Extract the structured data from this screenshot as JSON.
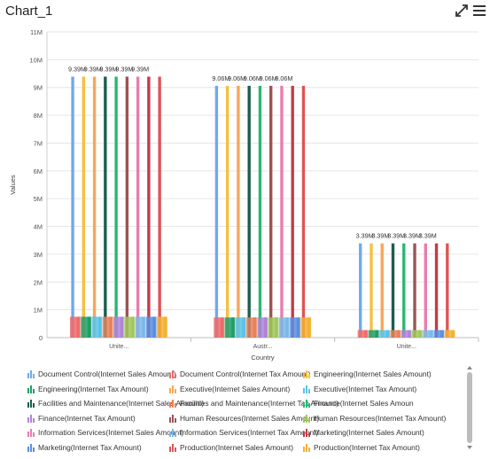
{
  "header": {
    "title": "Chart_1",
    "expand_icon": "expand-icon",
    "menu_icon": "hamburger-menu-icon"
  },
  "colors": {
    "palette": [
      "#6fa8f0",
      "#f06a6a",
      "#f5c042",
      "#1f9e6a",
      "#f7a65a",
      "#5bc2e7",
      "#1a5e4e",
      "#e8815a",
      "#2bb673",
      "#b084d8",
      "#9b5454",
      "#a0c85a",
      "#e97cb0",
      "#7ab8e8",
      "#c23b4a",
      "#5a8fe0",
      "#e05454",
      "#f2b233"
    ]
  },
  "chart_data": {
    "type": "bar",
    "title": "",
    "xlabel": "Country",
    "ylabel": "Values",
    "ylim": [
      0,
      11000000
    ],
    "y_ticks": [
      "0",
      "1M",
      "2M",
      "3M",
      "4M",
      "5M",
      "6M",
      "7M",
      "8M",
      "9M",
      "10M",
      "11M"
    ],
    "grid": true,
    "legend_position": "bottom",
    "categories": [
      "Unite...",
      "Austr...",
      "Unite..."
    ],
    "data_labels": [
      [
        "9.39M",
        "9.39M",
        "9.39M",
        "9.39M",
        "9.39M"
      ],
      [
        "9.06M",
        "9.06M",
        "9.06M",
        "9.06M",
        "9.06M"
      ],
      [
        "3.39M",
        "3.39M",
        "3.39M",
        "3.39M",
        "3.39M"
      ]
    ],
    "series": [
      {
        "name": "Document Control(Internet Sales Amount)",
        "values": [
          9390000,
          9060000,
          3390000
        ]
      },
      {
        "name": "Document Control(Internet Tax Amount)",
        "values": [
          751000,
          725000,
          271000
        ]
      },
      {
        "name": "Engineering(Internet Sales Amount)",
        "values": [
          9390000,
          9060000,
          3390000
        ]
      },
      {
        "name": "Engineering(Internet Tax Amount)",
        "values": [
          751000,
          725000,
          271000
        ]
      },
      {
        "name": "Executive(Internet Sales Amount)",
        "values": [
          9390000,
          9060000,
          3390000
        ]
      },
      {
        "name": "Executive(Internet Tax Amount)",
        "values": [
          751000,
          725000,
          271000
        ]
      },
      {
        "name": "Facilities and Maintenance(Internet Sales Amount)",
        "values": [
          9390000,
          9060000,
          3390000
        ]
      },
      {
        "name": "Facilities and Maintenance(Internet Tax Amount)",
        "values": [
          751000,
          725000,
          271000
        ]
      },
      {
        "name": "Finance(Internet Sales Amount)",
        "values": [
          9390000,
          9060000,
          3390000
        ]
      },
      {
        "name": "Finance(Internet Tax Amount)",
        "values": [
          751000,
          725000,
          271000
        ]
      },
      {
        "name": "Human Resources(Internet Sales Amount)",
        "values": [
          9390000,
          9060000,
          3390000
        ]
      },
      {
        "name": "Human Resources(Internet Tax Amount)",
        "values": [
          751000,
          725000,
          271000
        ]
      },
      {
        "name": "Information Services(Internet Sales Amount)",
        "values": [
          9390000,
          9060000,
          3390000
        ]
      },
      {
        "name": "Information Services(Internet Tax Amount)",
        "values": [
          751000,
          725000,
          271000
        ]
      },
      {
        "name": "Marketing(Internet Sales Amount)",
        "values": [
          9390000,
          9060000,
          3390000
        ]
      },
      {
        "name": "Marketing(Internet Tax Amount)",
        "values": [
          751000,
          725000,
          271000
        ]
      },
      {
        "name": "Production(Internet Sales Amount)",
        "values": [
          9390000,
          9060000,
          3390000
        ]
      },
      {
        "name": "Production(Internet Tax Amount)",
        "values": [
          751000,
          725000,
          271000
        ]
      }
    ]
  },
  "legend": {
    "rows": [
      [
        "Document Control(Internet Sales Amount)",
        "Document Control(Internet Tax Amount)",
        "Engineering(Internet Sales Amount)"
      ],
      [
        "Engineering(Internet Tax Amount)",
        "Executive(Internet Sales Amount)",
        "Executive(Internet Tax Amount)"
      ],
      [
        "Facilities and Maintenance(Internet Sales Amount)",
        "Facilities and Maintenance(Internet Tax Amount)",
        "Finance(Internet Sales Amoun"
      ],
      [
        "Finance(Internet Tax Amount)",
        "Human Resources(Internet Sales Amount)",
        "Human Resources(Internet Tax Amount)"
      ],
      [
        "Information Services(Internet Sales Amount)",
        "Information Services(Internet Tax Amount)",
        "Marketing(Internet Sales Amount)"
      ],
      [
        "Marketing(Internet Tax Amount)",
        "Production(Internet Sales Amount)",
        "Production(Internet Tax Amount)"
      ]
    ]
  }
}
